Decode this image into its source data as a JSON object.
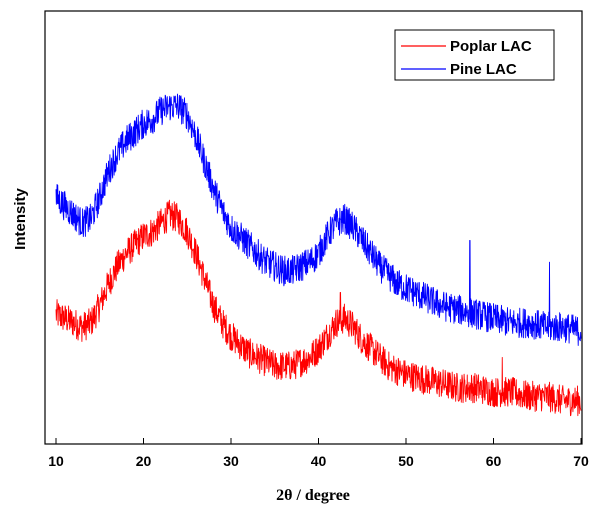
{
  "chart_data": {
    "type": "line",
    "xlabel": "2θ / degree",
    "ylabel": "Intensity",
    "xlim": [
      10,
      70
    ],
    "ylim": [
      0,
      100
    ],
    "xticks": [
      "10",
      "20",
      "30",
      "40",
      "50",
      "60",
      "70"
    ],
    "y_tick_labels_shown": false,
    "grid": false,
    "legend_position": "top-right",
    "series": [
      {
        "name": "Poplar LAC",
        "color": "#ff0000",
        "noise": 3.5,
        "x": [
          10,
          11,
          12,
          13,
          14,
          15,
          16,
          17,
          18,
          19,
          20,
          21,
          22,
          23,
          24,
          25,
          26,
          27,
          28,
          29,
          30,
          31,
          32,
          33,
          34,
          35,
          36,
          37,
          38,
          39,
          40,
          41,
          42,
          43,
          44,
          45,
          46,
          47,
          48,
          49,
          50,
          52,
          54,
          56,
          58,
          60,
          62,
          64,
          66,
          68,
          70
        ],
        "y": [
          30,
          29,
          28,
          27,
          28,
          32,
          37,
          41,
          44,
          46,
          48,
          49,
          51,
          53,
          52,
          49,
          44,
          38,
          32,
          28,
          25,
          23,
          21,
          20,
          19,
          18,
          18,
          18,
          19,
          20,
          22,
          25,
          28,
          29,
          27,
          24,
          22,
          20,
          18,
          17,
          16,
          15,
          14,
          13,
          13,
          12,
          12,
          11,
          11,
          10,
          10
        ]
      },
      {
        "name": "Pine LAC",
        "color": "#0000ff",
        "noise": 3.5,
        "x": [
          10,
          11,
          12,
          13,
          14,
          15,
          16,
          17,
          18,
          19,
          20,
          21,
          22,
          23,
          24,
          25,
          26,
          27,
          28,
          29,
          30,
          31,
          32,
          33,
          34,
          35,
          36,
          37,
          38,
          39,
          40,
          41,
          42,
          43,
          44,
          45,
          46,
          47,
          48,
          49,
          50,
          52,
          54,
          56,
          58,
          60,
          62,
          64,
          66,
          68,
          70
        ],
        "y": [
          57,
          55,
          53,
          51,
          52,
          57,
          63,
          67,
          70,
          72,
          74,
          75,
          77,
          78,
          78,
          76,
          71,
          65,
          59,
          54,
          50,
          48,
          46,
          44,
          42,
          41,
          40,
          40,
          41,
          42,
          44,
          48,
          51,
          52,
          50,
          47,
          44,
          41,
          39,
          37,
          36,
          34,
          32,
          31,
          30,
          29,
          28,
          28,
          27,
          27,
          26
        ]
      }
    ],
    "spikes": [
      {
        "series": 1,
        "x": 57.3,
        "y": 47
      },
      {
        "series": 1,
        "x": 66.4,
        "y": 42
      },
      {
        "series": 0,
        "x": 61.0,
        "y": 20
      },
      {
        "series": 0,
        "x": 42.5,
        "y": 35
      }
    ]
  }
}
